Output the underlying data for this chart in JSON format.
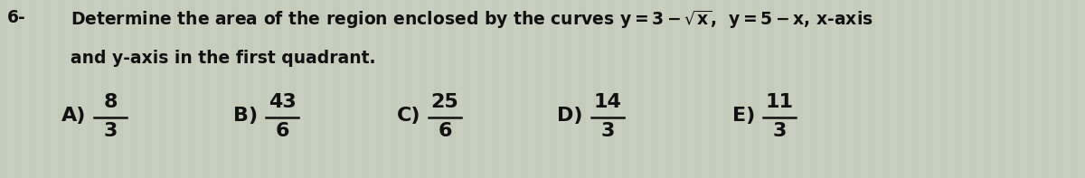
{
  "background_color": "#c8cfc0",
  "stripe_color1": "#c0c8b8",
  "stripe_color2": "#d0d8c8",
  "text_color": "#111111",
  "question_number": "6-",
  "line1": "Determine the area of the region enclosed by the curves $y=3-\\sqrt{x}$,  $y=5-x$, x-axis",
  "line2": "and y-axis in the first quadrant.",
  "answers": [
    {
      "label": "A)",
      "num": "8",
      "den": "3"
    },
    {
      "label": "B)",
      "num": "43",
      "den": "6"
    },
    {
      "label": "C)",
      "num": "25",
      "den": "6"
    },
    {
      "label": "D)",
      "num": "14",
      "den": "3"
    },
    {
      "label": "E)",
      "num": "11",
      "den": "3"
    }
  ],
  "font_size_q": 13.5,
  "font_size_ans": 16,
  "font_size_num": "6-"
}
